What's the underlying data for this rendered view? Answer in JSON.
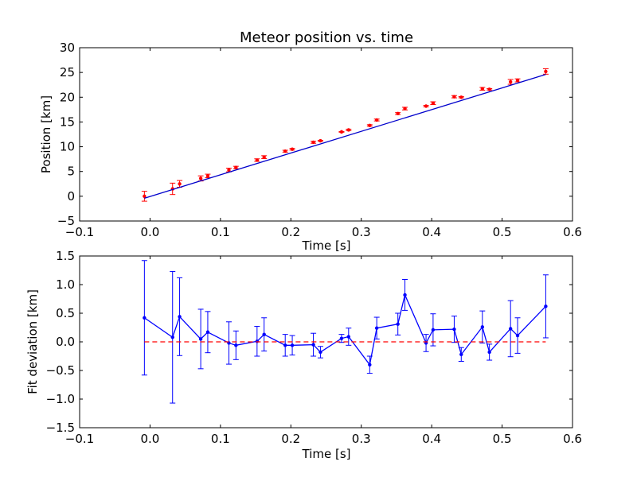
{
  "chart_data": [
    {
      "type": "scatter",
      "title": "Meteor position vs. time",
      "xlabel": "Time [s]",
      "ylabel": "Position [km]",
      "xlim": [
        -0.1,
        0.6
      ],
      "ylim": [
        -5,
        30
      ],
      "xticks": [
        "−0.1",
        "0.0",
        "0.1",
        "0.2",
        "0.3",
        "0.4",
        "0.5",
        "0.6"
      ],
      "yticks": [
        "−5",
        "0",
        "5",
        "10",
        "15",
        "20",
        "25",
        "30"
      ],
      "xtick_values": [
        -0.1,
        0.0,
        0.1,
        0.2,
        0.3,
        0.4,
        0.5,
        0.6
      ],
      "ytick_values": [
        -5,
        0,
        5,
        10,
        15,
        20,
        25,
        30
      ],
      "grid": false,
      "series": [
        {
          "kind": "points-with-errorbars",
          "color": "#ff0000",
          "x": [
            -0.008,
            0.032,
            0.042,
            0.072,
            0.082,
            0.112,
            0.122,
            0.152,
            0.162,
            0.192,
            0.202,
            0.232,
            0.242,
            0.272,
            0.282,
            0.312,
            0.322,
            0.352,
            0.362,
            0.392,
            0.402,
            0.432,
            0.442,
            0.472,
            0.482,
            0.512,
            0.522,
            0.562
          ],
          "y": [
            0.0,
            1.5,
            2.5,
            3.6,
            4.1,
            5.3,
            5.8,
            7.3,
            7.9,
            9.1,
            9.5,
            10.9,
            11.2,
            13.0,
            13.4,
            14.3,
            15.4,
            16.7,
            17.7,
            18.2,
            18.8,
            20.1,
            20.0,
            21.7,
            21.6,
            23.1,
            23.4,
            25.2
          ],
          "yerr": [
            1.0,
            1.15,
            0.68,
            0.52,
            0.36,
            0.37,
            0.25,
            0.26,
            0.29,
            0.19,
            0.17,
            0.2,
            0.1,
            0.07,
            0.15,
            0.15,
            0.19,
            0.19,
            0.27,
            0.15,
            0.28,
            0.23,
            0.12,
            0.28,
            0.14,
            0.49,
            0.31,
            0.55
          ]
        },
        {
          "kind": "fit-line",
          "color": "#0000cc",
          "x": [
            -0.008,
            0.562
          ],
          "y": [
            -0.4,
            24.6
          ]
        }
      ]
    },
    {
      "type": "line",
      "title": "",
      "xlabel": "Time [s]",
      "ylabel": "Fit deviation [km]",
      "xlim": [
        -0.1,
        0.6
      ],
      "ylim": [
        -1.5,
        1.5
      ],
      "xticks": [
        "−0.1",
        "0.0",
        "0.1",
        "0.2",
        "0.3",
        "0.4",
        "0.5",
        "0.6"
      ],
      "yticks": [
        "−1.5",
        "−1.0",
        "−0.5",
        "0.0",
        "0.5",
        "1.0",
        "1.5"
      ],
      "xtick_values": [
        -0.1,
        0.0,
        0.1,
        0.2,
        0.3,
        0.4,
        0.5,
        0.6
      ],
      "ytick_values": [
        -1.5,
        -1.0,
        -0.5,
        0.0,
        0.5,
        1.0,
        1.5
      ],
      "grid": false,
      "series": [
        {
          "kind": "line-with-errorbars",
          "color": "#0000ff",
          "x": [
            -0.008,
            0.032,
            0.042,
            0.072,
            0.082,
            0.112,
            0.122,
            0.152,
            0.162,
            0.192,
            0.202,
            0.232,
            0.242,
            0.272,
            0.282,
            0.312,
            0.322,
            0.352,
            0.362,
            0.392,
            0.402,
            0.432,
            0.442,
            0.472,
            0.482,
            0.512,
            0.522,
            0.562
          ],
          "y": [
            0.42,
            0.08,
            0.44,
            0.05,
            0.17,
            -0.02,
            -0.06,
            0.01,
            0.13,
            -0.06,
            -0.06,
            -0.05,
            -0.18,
            0.06,
            0.09,
            -0.4,
            0.24,
            0.31,
            0.82,
            -0.02,
            0.21,
            0.22,
            -0.22,
            0.26,
            -0.18,
            0.23,
            0.11,
            0.62
          ],
          "yerr": [
            1.0,
            1.15,
            0.68,
            0.52,
            0.36,
            0.37,
            0.25,
            0.26,
            0.29,
            0.19,
            0.17,
            0.2,
            0.1,
            0.07,
            0.15,
            0.15,
            0.19,
            0.19,
            0.27,
            0.15,
            0.28,
            0.23,
            0.12,
            0.28,
            0.14,
            0.49,
            0.31,
            0.55
          ]
        },
        {
          "kind": "zero-reference",
          "color": "#ff0000",
          "style": "dashed",
          "x": [
            -0.008,
            0.562
          ],
          "y": [
            0,
            0
          ]
        }
      ]
    }
  ]
}
